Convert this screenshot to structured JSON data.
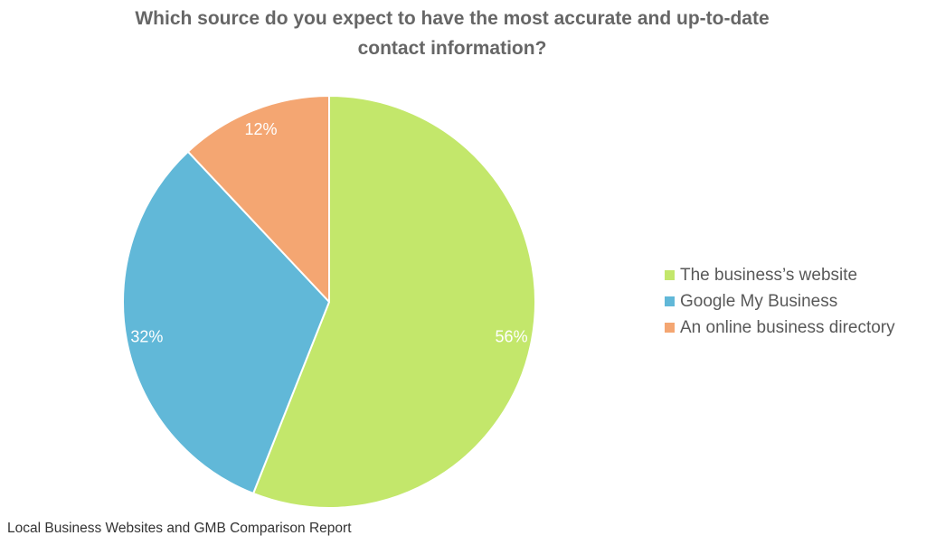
{
  "chart_data": {
    "type": "pie",
    "title": "Which source do you expect to have the most accurate and up-to-date contact information?",
    "title_lines": [
      "Which source do you expect to have the most accurate and up-to-date",
      "contact information?"
    ],
    "categories": [
      "The business’s website",
      "Google My Business",
      "An online business directory"
    ],
    "values": [
      56,
      32,
      12
    ],
    "data_labels": [
      "56%",
      "32%",
      "12%"
    ],
    "colors": [
      "#c3e76b",
      "#61b8d8",
      "#f4a672"
    ],
    "start_angle": "12 o'clock",
    "direction": "clockwise",
    "legend_position": "right"
  },
  "source_note": "Local Business Websites and GMB Comparison Report"
}
